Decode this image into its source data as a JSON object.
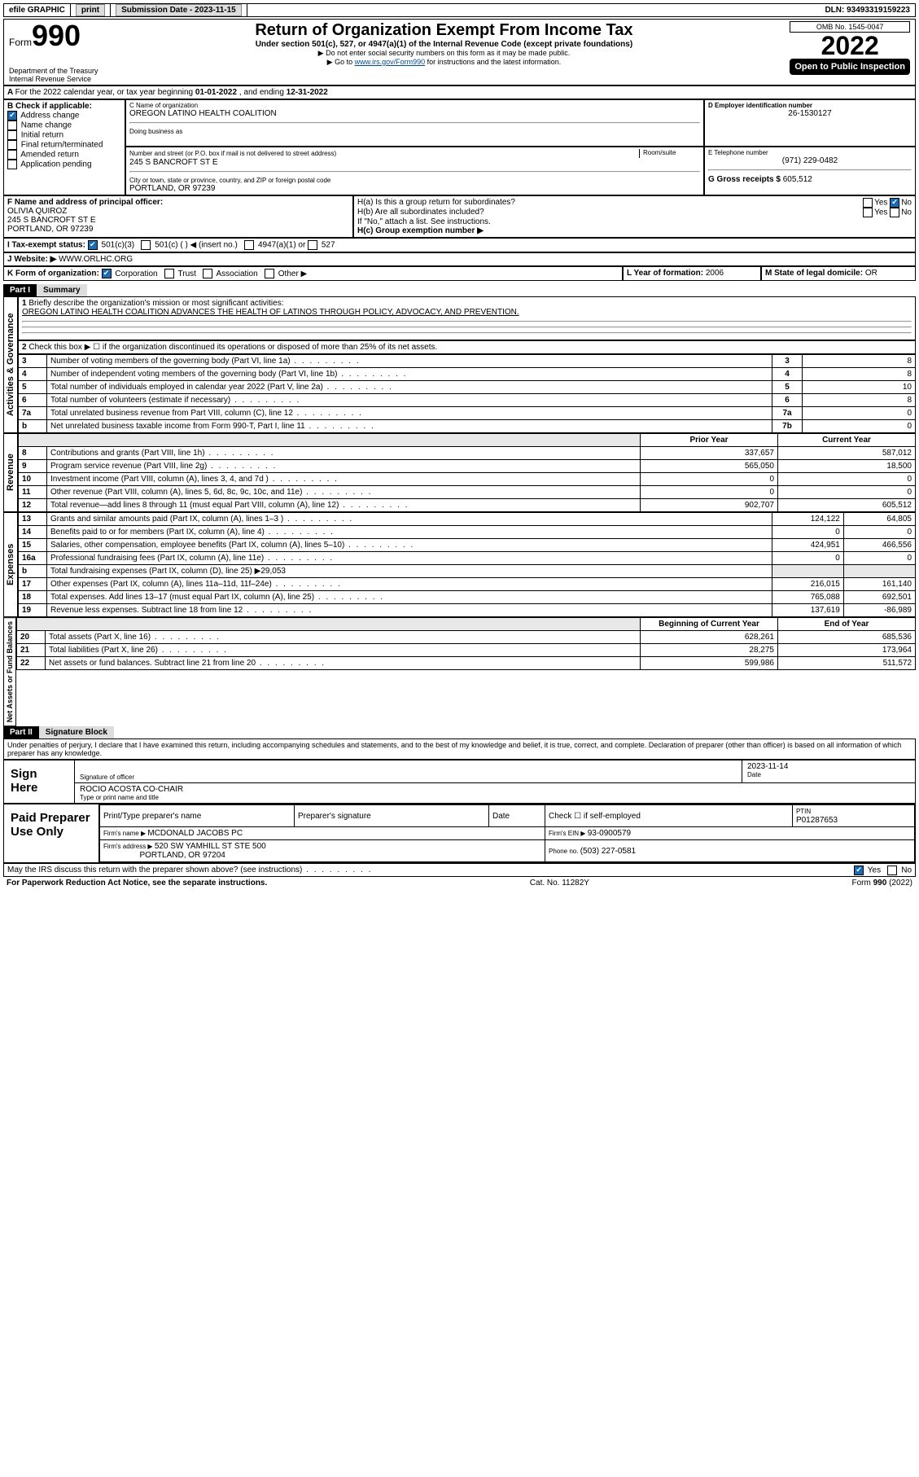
{
  "top": {
    "efile": "efile GRAPHIC",
    "print": "print",
    "sub_date_lbl": "Submission Date - ",
    "sub_date": "2023-11-15",
    "dln_lbl": "DLN: ",
    "dln": "93493319159223"
  },
  "header": {
    "form": "Form",
    "n990": "990",
    "title": "Return of Organization Exempt From Income Tax",
    "sub": "Under section 501(c), 527, or 4947(a)(1) of the Internal Revenue Code (except private foundations)",
    "sub2a": "▶ Do not enter social security numbers on this form as it may be made public.",
    "sub2b_pre": "▶ Go to ",
    "sub2b_link": "www.irs.gov/Form990",
    "sub2b_post": " for instructions and the latest information.",
    "dept": "Department of the Treasury",
    "irs": "Internal Revenue Service",
    "omb": "OMB No. 1545-0047",
    "year": "2022",
    "inspect": "Open to Public Inspection"
  },
  "A": {
    "text": "For the 2022 calendar year, or tax year beginning ",
    "begin": "01-01-2022",
    "mid": " , and ending ",
    "end": "12-31-2022"
  },
  "B": {
    "lbl": "B Check if applicable:",
    "items": [
      "Address change",
      "Name change",
      "Initial return",
      "Final return/terminated",
      "Amended return",
      "Application pending"
    ],
    "checked": [
      true,
      false,
      false,
      false,
      false,
      false
    ]
  },
  "C": {
    "name_lbl": "C Name of organization",
    "name": "OREGON LATINO HEALTH COALITION",
    "dba_lbl": "Doing business as",
    "addr_lbl": "Number and street (or P.O. box if mail is not delivered to street address)",
    "room_lbl": "Room/suite",
    "addr": "245 S BANCROFT ST E",
    "city_lbl": "City or town, state or province, country, and ZIP or foreign postal code",
    "city": "PORTLAND, OR  97239"
  },
  "D": {
    "lbl": "D Employer identification number",
    "val": "26-1530127"
  },
  "E": {
    "lbl": "E Telephone number",
    "val": "(971) 229-0482"
  },
  "G": {
    "lbl": "G Gross receipts $ ",
    "val": "605,512"
  },
  "F": {
    "lbl": "F Name and address of principal officer:",
    "name": "OLIVIA QUIROZ",
    "addr1": "245 S BANCROFT ST E",
    "addr2": "PORTLAND, OR  97239"
  },
  "H": {
    "a_lbl": "H(a)  Is this a group return for subordinates?",
    "a_yes": "Yes",
    "a_no": "No",
    "b_lbl": "H(b)  Are all subordinates included?",
    "b_note": "If \"No,\" attach a list. See instructions.",
    "c_lbl": "H(c)  Group exemption number ▶"
  },
  "I": {
    "lbl": "I    Tax-exempt status:",
    "c3": "501(c)(3)",
    "c": "501(c) (  ) ◀ (insert no.)",
    "a1": "4947(a)(1) or",
    "s527": "527"
  },
  "J": {
    "lbl": "J    Website: ▶ ",
    "val": "WWW.ORLHC.ORG"
  },
  "K": {
    "lbl": "K Form of organization:",
    "opts": [
      "Corporation",
      "Trust",
      "Association",
      "Other ▶"
    ],
    "checked": [
      true,
      false,
      false,
      false
    ]
  },
  "L": {
    "lbl": "L Year of formation: ",
    "val": "2006"
  },
  "M": {
    "lbl": "M State of legal domicile: ",
    "val": "OR"
  },
  "part1": {
    "hdr": "Part I",
    "title": "Summary"
  },
  "s1": {
    "lbl": "Briefly describe the organization's mission or most significant activities:",
    "val": "OREGON LATINO HEALTH COALITION ADVANCES THE HEALTH OF LATINOS THROUGH POLICY, ADVOCACY, AND PREVENTION."
  },
  "s2": "Check this box ▶ ☐  if the organization discontinued its operations or disposed of more than 25% of its net assets.",
  "rows_gov": [
    {
      "n": "3",
      "t": "Number of voting members of the governing body (Part VI, line 1a)",
      "r": "3",
      "v": "8"
    },
    {
      "n": "4",
      "t": "Number of independent voting members of the governing body (Part VI, line 1b)",
      "r": "4",
      "v": "8"
    },
    {
      "n": "5",
      "t": "Total number of individuals employed in calendar year 2022 (Part V, line 2a)",
      "r": "5",
      "v": "10"
    },
    {
      "n": "6",
      "t": "Total number of volunteers (estimate if necessary)",
      "r": "6",
      "v": "8"
    },
    {
      "n": "7a",
      "t": "Total unrelated business revenue from Part VIII, column (C), line 12",
      "r": "7a",
      "v": "0"
    },
    {
      "n": "b",
      "t": "Net unrelated business taxable income from Form 990-T, Part I, line 11",
      "r": "7b",
      "v": "0"
    }
  ],
  "colhdr": {
    "prior": "Prior Year",
    "curr": "Current Year"
  },
  "rows_rev": [
    {
      "n": "8",
      "t": "Contributions and grants (Part VIII, line 1h)",
      "p": "337,657",
      "c": "587,012"
    },
    {
      "n": "9",
      "t": "Program service revenue (Part VIII, line 2g)",
      "p": "565,050",
      "c": "18,500"
    },
    {
      "n": "10",
      "t": "Investment income (Part VIII, column (A), lines 3, 4, and 7d )",
      "p": "0",
      "c": "0"
    },
    {
      "n": "11",
      "t": "Other revenue (Part VIII, column (A), lines 5, 6d, 8c, 9c, 10c, and 11e)",
      "p": "0",
      "c": "0"
    },
    {
      "n": "12",
      "t": "Total revenue—add lines 8 through 11 (must equal Part VIII, column (A), line 12)",
      "p": "902,707",
      "c": "605,512"
    }
  ],
  "rows_exp": [
    {
      "n": "13",
      "t": "Grants and similar amounts paid (Part IX, column (A), lines 1–3 )",
      "p": "124,122",
      "c": "64,805"
    },
    {
      "n": "14",
      "t": "Benefits paid to or for members (Part IX, column (A), line 4)",
      "p": "0",
      "c": "0"
    },
    {
      "n": "15",
      "t": "Salaries, other compensation, employee benefits (Part IX, column (A), lines 5–10)",
      "p": "424,951",
      "c": "466,556"
    },
    {
      "n": "16a",
      "t": "Professional fundraising fees (Part IX, column (A), line 11e)",
      "p": "0",
      "c": "0"
    },
    {
      "n": "b",
      "t": "Total fundraising expenses (Part IX, column (D), line 25) ▶29,053",
      "p": "",
      "c": "",
      "gray": true
    },
    {
      "n": "17",
      "t": "Other expenses (Part IX, column (A), lines 11a–11d, 11f–24e)",
      "p": "216,015",
      "c": "161,140"
    },
    {
      "n": "18",
      "t": "Total expenses. Add lines 13–17 (must equal Part IX, column (A), line 25)",
      "p": "765,088",
      "c": "692,501"
    },
    {
      "n": "19",
      "t": "Revenue less expenses. Subtract line 18 from line 12",
      "p": "137,619",
      "c": "-86,989"
    }
  ],
  "colhdr2": {
    "prior": "Beginning of Current Year",
    "curr": "End of Year"
  },
  "rows_net": [
    {
      "n": "20",
      "t": "Total assets (Part X, line 16)",
      "p": "628,261",
      "c": "685,536"
    },
    {
      "n": "21",
      "t": "Total liabilities (Part X, line 26)",
      "p": "28,275",
      "c": "173,964"
    },
    {
      "n": "22",
      "t": "Net assets or fund balances. Subtract line 21 from line 20",
      "p": "599,986",
      "c": "511,572"
    }
  ],
  "part2": {
    "hdr": "Part II",
    "title": "Signature Block"
  },
  "penalties": "Under penalties of perjury, I declare that I have examined this return, including accompanying schedules and statements, and to the best of my knowledge and belief, it is true, correct, and complete. Declaration of preparer (other than officer) is based on all information of which preparer has any knowledge.",
  "sign": {
    "here": "Sign Here",
    "sig_lbl": "Signature of officer",
    "date_lbl": "Date",
    "date": "2023-11-14",
    "name": "ROCIO ACOSTA CO-CHAIR",
    "name_lbl": "Type or print name and title"
  },
  "paid": {
    "hdr": "Paid Preparer Use Only",
    "cols": [
      "Print/Type preparer's name",
      "Preparer's signature",
      "Date"
    ],
    "check_lbl": "Check ☐ if self-employed",
    "ptin_lbl": "PTIN",
    "ptin": "P01287653",
    "firm_name_lbl": "Firm's name    ▶ ",
    "firm_name": "MCDONALD JACOBS PC",
    "ein_lbl": "Firm's EIN ▶ ",
    "ein": "93-0900579",
    "addr_lbl": "Firm's address ▶ ",
    "addr1": "520 SW YAMHILL ST STE 500",
    "addr2": "PORTLAND, OR  97204",
    "phone_lbl": "Phone no. ",
    "phone": "(503) 227-0581"
  },
  "discuss": "May the IRS discuss this return with the preparer shown above? (see instructions)",
  "footer": {
    "left": "For Paperwork Reduction Act Notice, see the separate instructions.",
    "mid": "Cat. No. 11282Y",
    "right": "Form 990 (2022)"
  },
  "vlabels": {
    "gov": "Activities & Governance",
    "rev": "Revenue",
    "exp": "Expenses",
    "net": "Net Assets or Fund Balances"
  }
}
